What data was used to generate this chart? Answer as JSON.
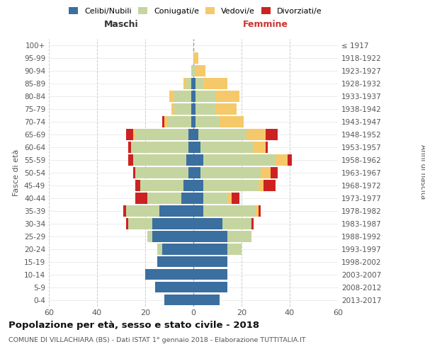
{
  "age_groups": [
    "0-4",
    "5-9",
    "10-14",
    "15-19",
    "20-24",
    "25-29",
    "30-34",
    "35-39",
    "40-44",
    "45-49",
    "50-54",
    "55-59",
    "60-64",
    "65-69",
    "70-74",
    "75-79",
    "80-84",
    "85-89",
    "90-94",
    "95-99",
    "100+"
  ],
  "birth_years": [
    "2013-2017",
    "2008-2012",
    "2003-2007",
    "1998-2002",
    "1993-1997",
    "1988-1992",
    "1983-1987",
    "1978-1982",
    "1973-1977",
    "1968-1972",
    "1963-1967",
    "1958-1962",
    "1953-1957",
    "1948-1952",
    "1943-1947",
    "1938-1942",
    "1933-1937",
    "1928-1932",
    "1923-1927",
    "1918-1922",
    "≤ 1917"
  ],
  "colors": {
    "celibe": "#3b6fa0",
    "coniugato": "#c5d5a0",
    "vedovo": "#f5c96a",
    "divorziato": "#cc2222"
  },
  "male": {
    "celibe": [
      12,
      16,
      20,
      15,
      13,
      17,
      17,
      14,
      5,
      4,
      2,
      3,
      2,
      2,
      1,
      1,
      1,
      1,
      0,
      0,
      0
    ],
    "coniugato": [
      0,
      0,
      0,
      0,
      2,
      2,
      10,
      14,
      14,
      18,
      22,
      22,
      24,
      22,
      10,
      7,
      7,
      2,
      1,
      0,
      0
    ],
    "vedovo": [
      0,
      0,
      0,
      0,
      0,
      0,
      0,
      0,
      0,
      0,
      0,
      0,
      0,
      1,
      1,
      1,
      2,
      1,
      0,
      0,
      0
    ],
    "divorziato": [
      0,
      0,
      0,
      0,
      0,
      0,
      1,
      1,
      5,
      2,
      1,
      2,
      1,
      3,
      1,
      0,
      0,
      0,
      0,
      0,
      0
    ]
  },
  "female": {
    "nubile": [
      11,
      14,
      14,
      14,
      14,
      14,
      12,
      4,
      4,
      4,
      3,
      4,
      3,
      2,
      1,
      1,
      1,
      1,
      0,
      0,
      0
    ],
    "coniugata": [
      0,
      0,
      0,
      0,
      6,
      10,
      12,
      22,
      10,
      23,
      25,
      30,
      22,
      20,
      10,
      8,
      8,
      3,
      1,
      0,
      0
    ],
    "vedova": [
      0,
      0,
      0,
      0,
      0,
      0,
      0,
      1,
      2,
      2,
      4,
      5,
      5,
      8,
      10,
      9,
      10,
      10,
      4,
      2,
      0
    ],
    "divorziata": [
      0,
      0,
      0,
      0,
      0,
      0,
      1,
      1,
      3,
      5,
      3,
      2,
      1,
      5,
      0,
      0,
      0,
      0,
      0,
      0,
      0
    ]
  },
  "xlim": 60,
  "title": "Popolazione per età, sesso e stato civile - 2018",
  "subtitle": "COMUNE DI VILLACHIARA (BS) - Dati ISTAT 1° gennaio 2018 - Elaborazione TUTTITALIA.IT",
  "ylabel_left": "Fasce di età",
  "ylabel_right": "Anni di nascita",
  "xlabel_left": "Maschi",
  "xlabel_right": "Femmine",
  "background_color": "#ffffff",
  "grid_color": "#cccccc"
}
